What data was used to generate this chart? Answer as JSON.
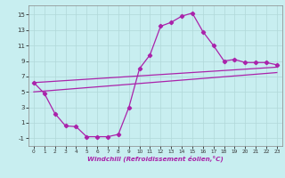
{
  "xlabel": "Windchill (Refroidissement éolien,°C)",
  "background_color": "#c8eef0",
  "grid_color": "#b0d8d8",
  "line_color": "#aa22aa",
  "xlim": [
    -0.5,
    23.5
  ],
  "ylim": [
    -2.0,
    16.2
  ],
  "yticks": [
    -1,
    1,
    3,
    5,
    7,
    9,
    11,
    13,
    15
  ],
  "xticks": [
    0,
    1,
    2,
    3,
    4,
    5,
    6,
    7,
    8,
    9,
    10,
    11,
    12,
    13,
    14,
    15,
    16,
    17,
    18,
    19,
    20,
    21,
    22,
    23
  ],
  "line1_x": [
    0,
    1,
    2,
    3,
    4,
    5,
    6,
    7,
    8,
    9,
    10,
    11,
    12,
    13,
    14,
    15,
    16,
    17,
    18,
    19,
    20,
    21,
    22,
    23
  ],
  "line1_y": [
    6.2,
    4.8,
    2.2,
    0.6,
    0.5,
    -0.8,
    -0.8,
    -0.8,
    -0.5,
    3.0,
    8.0,
    9.8,
    13.5,
    14.0,
    14.8,
    15.2,
    12.8,
    11.0,
    9.0,
    9.2,
    8.8,
    8.8,
    8.8,
    8.5
  ],
  "line2_x": [
    0,
    23
  ],
  "line2_y": [
    6.2,
    8.2
  ],
  "line3_x": [
    0,
    23
  ],
  "line3_y": [
    5.0,
    7.5
  ]
}
